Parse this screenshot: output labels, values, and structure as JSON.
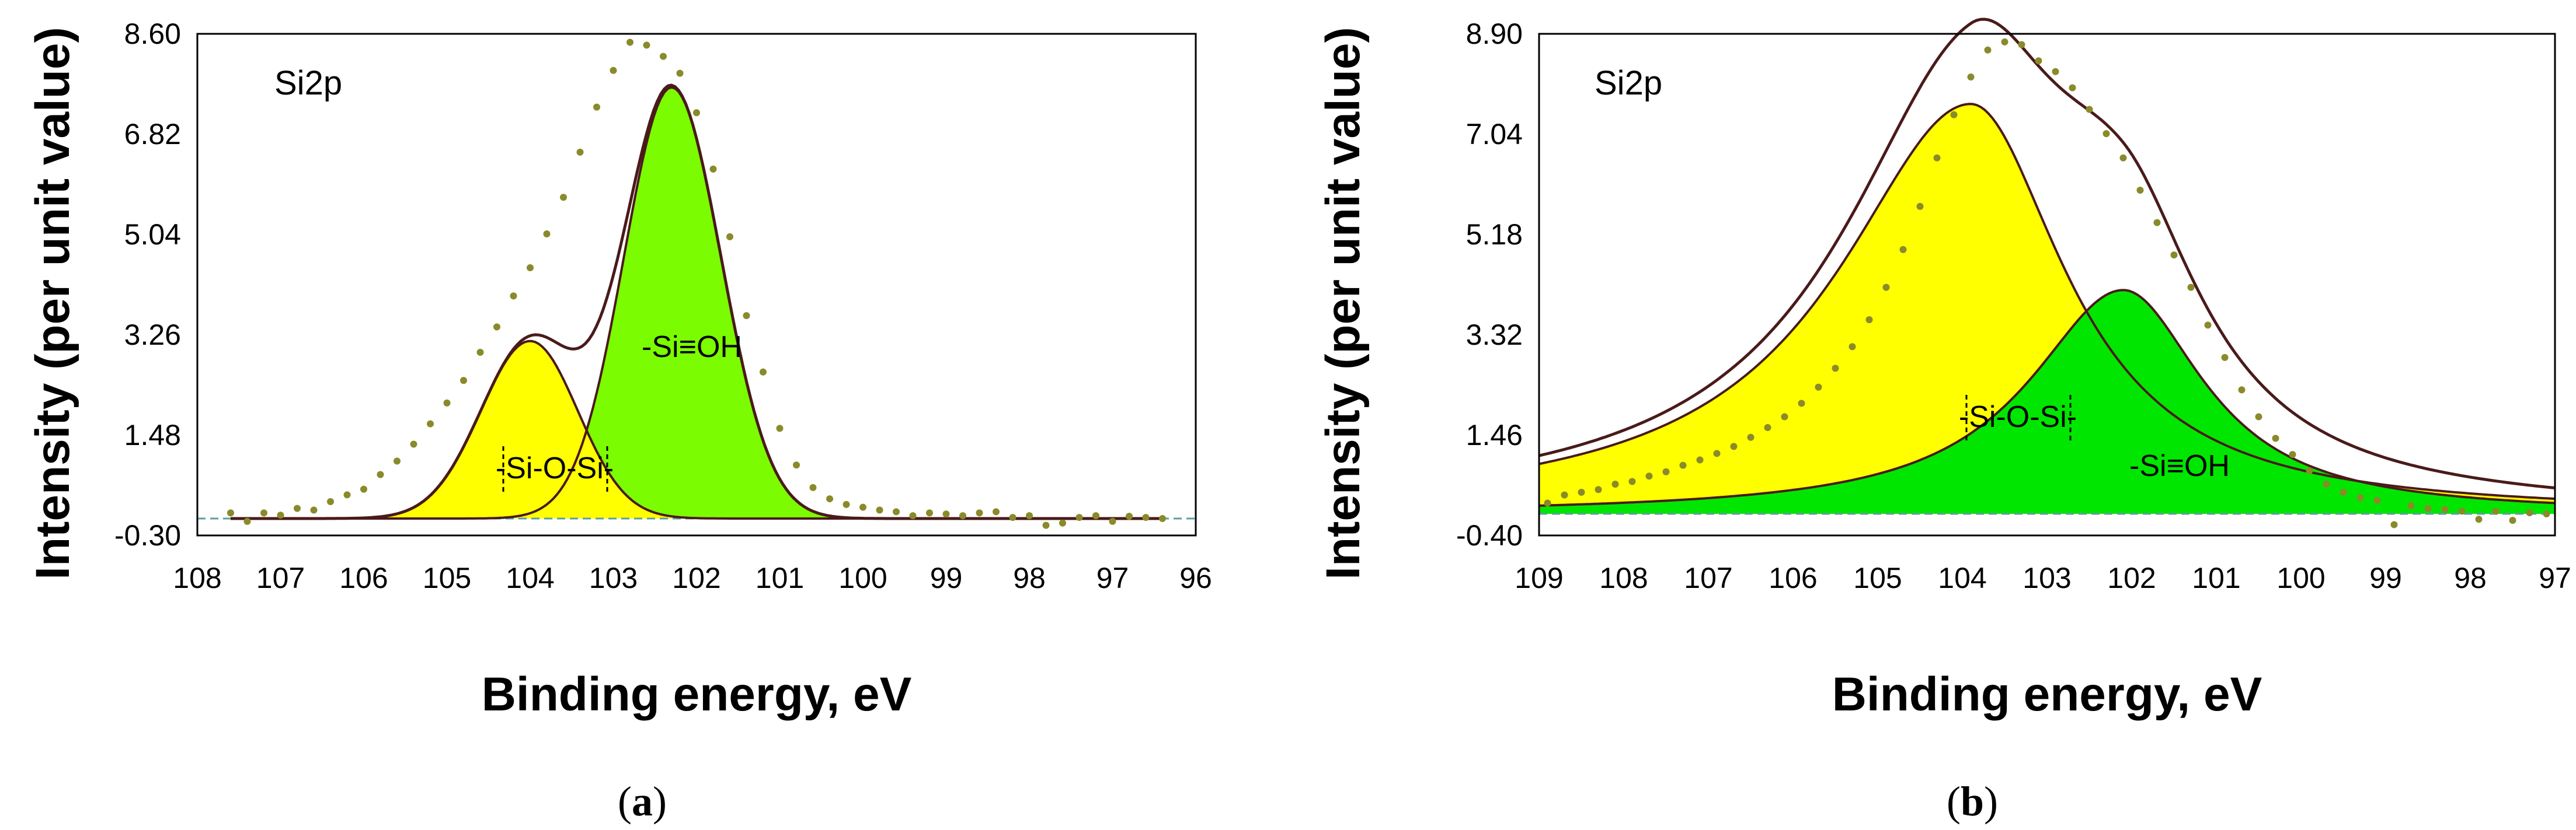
{
  "chart_data": [
    {
      "type": "area",
      "panel_caption": {
        "open": "(",
        "letter": "a",
        "close": ")"
      },
      "spectrum_label": "Si2p",
      "xlabel": "Binding energy, eV",
      "ylabel": "Intensity (per unit value)",
      "x_reversed": true,
      "xlim": [
        108,
        96
      ],
      "ylim": [
        -0.3,
        8.6
      ],
      "x_ticks": [
        "108",
        "107",
        "106",
        "105",
        "104",
        "103",
        "102",
        "101",
        "100",
        "99",
        "98",
        "97",
        "96"
      ],
      "y_ticks": [
        "8.60",
        "6.82",
        "5.04",
        "3.26",
        "1.48",
        "-0.30"
      ],
      "baseline": 0.0,
      "series": [
        {
          "name": "-Si-O-Si-",
          "type": "gaussian",
          "center": 104.0,
          "amplitude": 3.15,
          "fwhm_left": 1.4,
          "fwhm_right": 1.35,
          "color": "#ffff00"
        },
        {
          "name": "-Si≡OH",
          "type": "gaussian",
          "center": 102.3,
          "amplitude": 7.65,
          "fwhm_left": 1.35,
          "fwhm_right": 1.4,
          "color": "#7cfc00"
        }
      ],
      "experimental_points": [
        [
          107.6,
          0.1
        ],
        [
          107.4,
          -0.05
        ],
        [
          107.2,
          0.1
        ],
        [
          107.0,
          0.06
        ],
        [
          106.8,
          0.18
        ],
        [
          106.6,
          0.15
        ],
        [
          106.4,
          0.3
        ],
        [
          106.2,
          0.42
        ],
        [
          106.0,
          0.52
        ],
        [
          105.8,
          0.78
        ],
        [
          105.6,
          1.02
        ],
        [
          105.4,
          1.32
        ],
        [
          105.2,
          1.68
        ],
        [
          105.0,
          2.05
        ],
        [
          104.8,
          2.45
        ],
        [
          104.6,
          2.95
        ],
        [
          104.4,
          3.4
        ],
        [
          104.2,
          3.95
        ],
        [
          104.0,
          4.45
        ],
        [
          103.8,
          5.05
        ],
        [
          103.6,
          5.7
        ],
        [
          103.4,
          6.5
        ],
        [
          103.2,
          7.3
        ],
        [
          103.0,
          7.95
        ],
        [
          102.8,
          8.45
        ],
        [
          102.6,
          8.4
        ],
        [
          102.4,
          8.2
        ],
        [
          102.2,
          7.9
        ],
        [
          102.0,
          7.2
        ],
        [
          101.8,
          6.2
        ],
        [
          101.6,
          5.0
        ],
        [
          101.4,
          3.6
        ],
        [
          101.2,
          2.6
        ],
        [
          101.0,
          1.6
        ],
        [
          100.8,
          0.95
        ],
        [
          100.6,
          0.55
        ],
        [
          100.4,
          0.35
        ],
        [
          100.2,
          0.25
        ],
        [
          100.0,
          0.2
        ],
        [
          99.8,
          0.15
        ],
        [
          99.6,
          0.12
        ],
        [
          99.4,
          0.05
        ],
        [
          99.2,
          0.1
        ],
        [
          99.0,
          0.08
        ],
        [
          98.8,
          0.05
        ],
        [
          98.6,
          0.1
        ],
        [
          98.4,
          0.12
        ],
        [
          98.2,
          0.02
        ],
        [
          98.0,
          0.05
        ],
        [
          97.8,
          -0.12
        ],
        [
          97.6,
          -0.08
        ],
        [
          97.4,
          0.02
        ],
        [
          97.2,
          0.05
        ],
        [
          97.0,
          -0.05
        ],
        [
          96.8,
          0.04
        ],
        [
          96.6,
          0.02
        ],
        [
          96.4,
          0.0
        ]
      ],
      "colors": {
        "envelope": "#4a1a1a",
        "points": "#8a8a2a",
        "baseline": "#5f9ea0"
      }
    },
    {
      "type": "area",
      "panel_caption": {
        "open": "(",
        "letter": "b",
        "close": ")"
      },
      "spectrum_label": "Si2p",
      "xlabel": "Binding energy, eV",
      "ylabel": "Intensity (per unit value)",
      "x_reversed": true,
      "xlim": [
        109,
        97
      ],
      "ylim": [
        -0.4,
        8.9
      ],
      "x_ticks": [
        "109",
        "108",
        "107",
        "106",
        "105",
        "104",
        "103",
        "102",
        "101",
        "100",
        "99",
        "98",
        "97"
      ],
      "y_ticks": [
        "8.90",
        "7.04",
        "5.18",
        "3.32",
        "1.46",
        "-0.40"
      ],
      "baseline": 0.0,
      "series": [
        {
          "name": "-Si-O-Si-",
          "type": "lorentzian",
          "center": 103.9,
          "amplitude": 7.6,
          "hwhm_left": 1.9,
          "hwhm_right": 1.35,
          "color": "#ffff00"
        },
        {
          "name": "-Si≡OH",
          "type": "lorentzian",
          "center": 102.1,
          "amplitude": 4.15,
          "hwhm_left": 1.35,
          "hwhm_right": 1.15,
          "color": "#00e600"
        }
      ],
      "experimental_points": [
        [
          108.9,
          0.2
        ],
        [
          108.7,
          0.35
        ],
        [
          108.5,
          0.4
        ],
        [
          108.3,
          0.45
        ],
        [
          108.1,
          0.55
        ],
        [
          107.9,
          0.6
        ],
        [
          107.7,
          0.7
        ],
        [
          107.5,
          0.78
        ],
        [
          107.3,
          0.9
        ],
        [
          107.1,
          1.0
        ],
        [
          106.9,
          1.12
        ],
        [
          106.7,
          1.25
        ],
        [
          106.5,
          1.42
        ],
        [
          106.3,
          1.6
        ],
        [
          106.1,
          1.8
        ],
        [
          105.9,
          2.05
        ],
        [
          105.7,
          2.35
        ],
        [
          105.5,
          2.7
        ],
        [
          105.3,
          3.1
        ],
        [
          105.1,
          3.6
        ],
        [
          104.9,
          4.2
        ],
        [
          104.7,
          4.9
        ],
        [
          104.5,
          5.7
        ],
        [
          104.3,
          6.6
        ],
        [
          104.1,
          7.4
        ],
        [
          103.9,
          8.1
        ],
        [
          103.7,
          8.6
        ],
        [
          103.5,
          8.75
        ],
        [
          103.3,
          8.7
        ],
        [
          103.1,
          8.4
        ],
        [
          102.9,
          8.2
        ],
        [
          102.7,
          7.9
        ],
        [
          102.5,
          7.5
        ],
        [
          102.3,
          7.05
        ],
        [
          102.1,
          6.6
        ],
        [
          101.9,
          6.0
        ],
        [
          101.7,
          5.4
        ],
        [
          101.5,
          4.8
        ],
        [
          101.3,
          4.2
        ],
        [
          101.1,
          3.5
        ],
        [
          100.9,
          2.9
        ],
        [
          100.7,
          2.3
        ],
        [
          100.5,
          1.8
        ],
        [
          100.3,
          1.4
        ],
        [
          100.1,
          1.1
        ],
        [
          99.9,
          0.8
        ],
        [
          99.7,
          0.55
        ],
        [
          99.5,
          0.4
        ],
        [
          99.3,
          0.3
        ],
        [
          99.1,
          0.25
        ],
        [
          98.9,
          -0.2
        ],
        [
          98.7,
          0.15
        ],
        [
          98.5,
          0.1
        ],
        [
          98.3,
          0.08
        ],
        [
          98.1,
          0.05
        ],
        [
          97.9,
          -0.1
        ],
        [
          97.7,
          0.05
        ],
        [
          97.5,
          -0.12
        ],
        [
          97.3,
          0.02
        ],
        [
          97.1,
          0.0
        ]
      ],
      "colors": {
        "envelope": "#4a1a1a",
        "points": "#8a8a2a",
        "baseline": "#5f9ea0"
      }
    }
  ]
}
